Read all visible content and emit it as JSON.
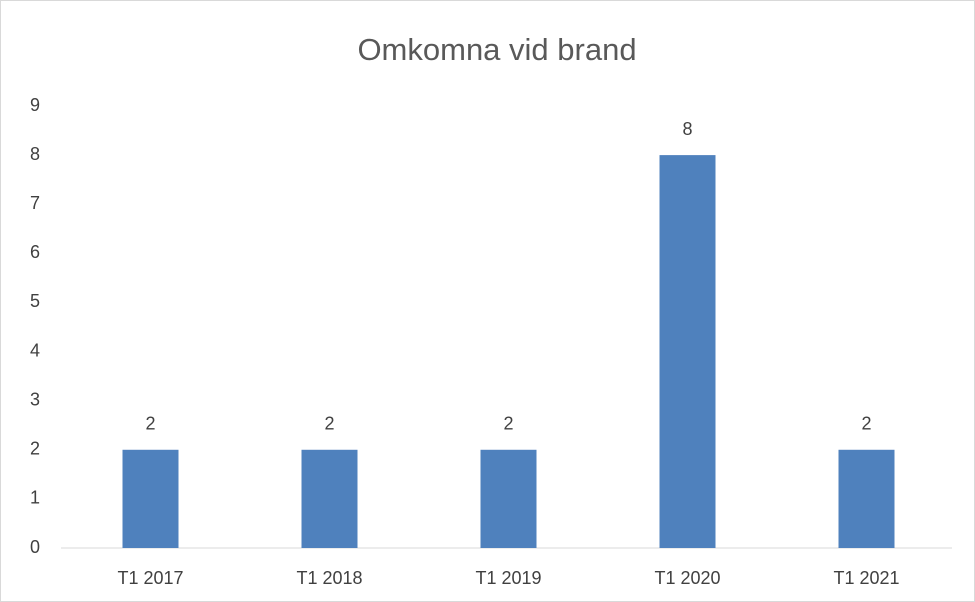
{
  "chart_data": {
    "type": "bar",
    "title": "Omkomna vid brand",
    "categories": [
      "T1 2017",
      "T1 2018",
      "T1 2019",
      "T1 2020",
      "T1 2021"
    ],
    "values": [
      2,
      2,
      2,
      8,
      2
    ],
    "color": "#4f81bd",
    "ylim": [
      0,
      9
    ],
    "yticks": [
      0,
      1,
      2,
      3,
      4,
      5,
      6,
      7,
      8,
      9
    ],
    "grid": false,
    "data_labels": true
  }
}
